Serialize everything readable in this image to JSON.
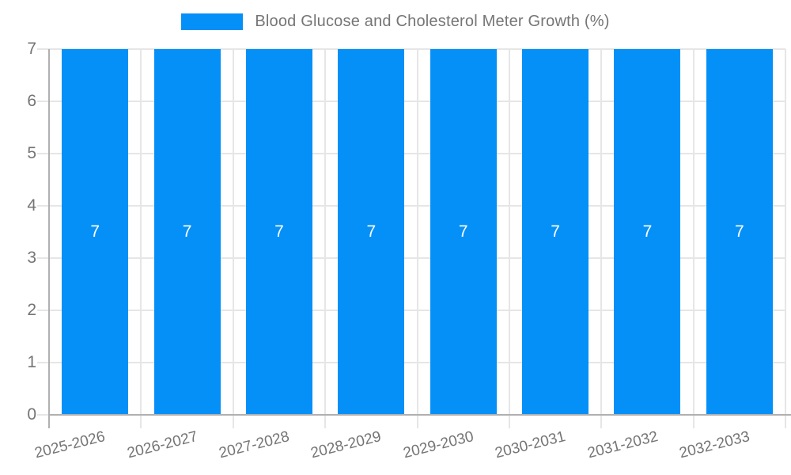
{
  "chart_data": {
    "type": "bar",
    "title": "Blood Glucose and Cholesterol Meter Growth (%)",
    "legend": {
      "position": "top",
      "label": "Blood Glucose and Cholesterol Meter Growth (%)"
    },
    "categories": [
      "2025-2026",
      "2026-2027",
      "2027-2028",
      "2028-2029",
      "2029-2030",
      "2030-2031",
      "2031-2032",
      "2032-2033"
    ],
    "values": [
      7,
      7,
      7,
      7,
      7,
      7,
      7,
      7
    ],
    "bar_value_labels": [
      "7",
      "7",
      "7",
      "7",
      "7",
      "7",
      "7",
      "7"
    ],
    "xlabel": "",
    "ylabel": "",
    "ylim": [
      0,
      7
    ],
    "yticks": [
      0,
      1,
      2,
      3,
      4,
      5,
      6,
      7
    ],
    "grid": true,
    "x_label_rotation_deg": -14,
    "colors": {
      "bar": "#0590f8",
      "grid": "#e6e6e6",
      "axis": "#b0b0b0",
      "tick_text": "#757575",
      "bar_label": "#ffffff",
      "background": "#ffffff"
    }
  }
}
